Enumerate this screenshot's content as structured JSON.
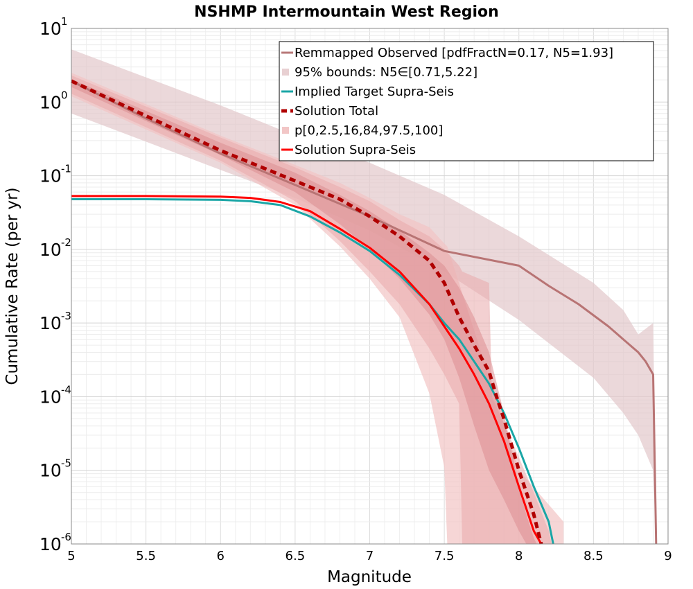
{
  "chart_data": {
    "type": "line",
    "title": "NSHMP Intermountain West Region",
    "xlabel": "Magnitude",
    "ylabel": "Cumulative Rate (per yr)",
    "xlim": [
      5,
      9
    ],
    "ylim": [
      1e-06,
      10
    ],
    "yscale": "log",
    "grid": true,
    "legend_position": "top-right",
    "xticks": [
      "5",
      "5.5",
      "6",
      "6.5",
      "7",
      "7.5",
      "8",
      "8.5",
      "9"
    ],
    "yticks": [
      {
        "base": "10",
        "exp": "1",
        "value": 10
      },
      {
        "base": "10",
        "exp": "0",
        "value": 1
      },
      {
        "base": "10",
        "exp": "-1",
        "value": 0.1
      },
      {
        "base": "10",
        "exp": "-2",
        "value": 0.01
      },
      {
        "base": "10",
        "exp": "-3",
        "value": 0.001
      },
      {
        "base": "10",
        "exp": "-4",
        "value": 0.0001
      },
      {
        "base": "10",
        "exp": "-5",
        "value": 1e-05
      },
      {
        "base": "10",
        "exp": "-6",
        "value": 1e-06
      }
    ],
    "legend": [
      {
        "label": "Remmapped Observed [pdfFractN=0.17, N5=1.93]",
        "style": "line",
        "color": "#b87878"
      },
      {
        "label": "95% bounds: N5∈[0.71,5.22]",
        "style": "band",
        "color": "#e8d0d2"
      },
      {
        "label": "Implied Target Supra-Seis",
        "style": "line",
        "color": "#1aa6a6"
      },
      {
        "label": "Solution Total",
        "style": "dashed",
        "color": "#b00000"
      },
      {
        "label": "p[0,2.5,16,84,97.5,100]",
        "style": "band",
        "color": "#f2c6c6"
      },
      {
        "label": "Solution Supra-Seis",
        "style": "line",
        "color": "#ff0000"
      }
    ],
    "bands": [
      {
        "name": "95% bounds: N5∈[0.71,5.22]",
        "color": "#e2c8cb",
        "opacity": 0.7,
        "x": [
          5.0,
          6.0,
          6.5,
          7.0,
          7.5,
          8.0,
          8.5,
          8.7,
          8.8,
          8.9,
          8.92
        ],
        "lower": [
          0.7,
          0.12,
          0.05,
          0.018,
          0.005,
          0.0011,
          0.00018,
          6e-05,
          3e-05,
          1e-05,
          1e-06
        ],
        "upper": [
          5.2,
          0.9,
          0.35,
          0.15,
          0.055,
          0.015,
          0.0035,
          0.0015,
          0.0007,
          0.001,
          1e-06
        ]
      },
      {
        "name": "p 0-100",
        "color": "#f2c4c4",
        "opacity": 0.7,
        "x": [
          5.0,
          6.0,
          6.5,
          6.8,
          7.0,
          7.2,
          7.4,
          7.5,
          7.52,
          8.0,
          8.3,
          8.3
        ],
        "lower": [
          1.2,
          0.15,
          0.04,
          0.011,
          0.004,
          0.0012,
          0.00011,
          1.1e-05,
          1e-06,
          1e-06,
          1e-06,
          1e-06
        ],
        "upper": [
          2.5,
          0.35,
          0.14,
          0.08,
          0.05,
          0.03,
          0.02,
          0.012,
          0.011,
          1e-05,
          2e-06,
          1e-06
        ]
      },
      {
        "name": "p 2.5-97.5",
        "color": "#e9a9ab",
        "opacity": 0.55,
        "x": [
          5.0,
          6.0,
          6.5,
          6.8,
          7.0,
          7.2,
          7.4,
          7.5,
          7.6,
          7.62,
          7.8,
          7.82,
          8.0,
          8.1,
          8.2,
          8.22
        ],
        "lower": [
          1.3,
          0.16,
          0.045,
          0.013,
          0.005,
          0.0018,
          0.00045,
          0.0002,
          8e-05,
          1e-06,
          1e-06,
          1e-06,
          1e-06,
          1e-06,
          1e-06,
          1e-06
        ],
        "upper": [
          2.3,
          0.33,
          0.13,
          0.07,
          0.045,
          0.025,
          0.015,
          0.01,
          0.006,
          0.005,
          0.0035,
          0.0001,
          1.5e-05,
          5e-06,
          1.5e-06,
          1e-06
        ]
      },
      {
        "name": "p 16-84",
        "color": "#dc8e91",
        "opacity": 0.55,
        "x": [
          5.0,
          6.0,
          6.5,
          6.8,
          7.0,
          7.2,
          7.4,
          7.5,
          7.6,
          7.7,
          7.8,
          7.9,
          8.0,
          8.05,
          8.1,
          8.12
        ],
        "lower": [
          1.6,
          0.19,
          0.06,
          0.022,
          0.01,
          0.004,
          0.0013,
          0.0006,
          0.00018,
          4e-05,
          1e-05,
          4e-06,
          1.5e-06,
          1e-06,
          1e-06,
          1e-06
        ],
        "upper": [
          2.05,
          0.28,
          0.11,
          0.055,
          0.033,
          0.018,
          0.009,
          0.006,
          0.003,
          0.0012,
          0.0004,
          6e-05,
          6e-06,
          2.5e-06,
          1.2e-06,
          1e-06
        ]
      }
    ],
    "series": [
      {
        "name": "Remmapped Observed [pdfFractN=0.17, N5=1.93]",
        "color": "#b87474",
        "style": "solid",
        "width": 3,
        "x": [
          5.0,
          5.5,
          6.0,
          6.5,
          7.0,
          7.5,
          8.0,
          8.2,
          8.4,
          8.6,
          8.7,
          8.8,
          8.85,
          8.9,
          8.92
        ],
        "y": [
          1.93,
          0.6,
          0.2,
          0.075,
          0.028,
          0.0095,
          0.006,
          0.0032,
          0.0018,
          0.0009,
          0.0006,
          0.0004,
          0.0003,
          0.0002,
          1e-06
        ]
      },
      {
        "name": "Implied Target Supra-Seis",
        "color": "#1aa6a6",
        "style": "solid",
        "width": 3,
        "x": [
          5.0,
          5.5,
          6.0,
          6.2,
          6.4,
          6.6,
          6.8,
          7.0,
          7.2,
          7.4,
          7.5,
          7.6,
          7.7,
          7.8,
          7.9,
          8.0,
          8.1,
          8.2,
          8.23
        ],
        "y": [
          0.048,
          0.048,
          0.047,
          0.045,
          0.04,
          0.028,
          0.017,
          0.0095,
          0.0045,
          0.0018,
          0.001,
          0.0006,
          0.0003,
          0.00015,
          6e-05,
          2e-05,
          6e-06,
          2e-06,
          1e-06
        ]
      },
      {
        "name": "Solution Supra-Seis",
        "color": "#ff0000",
        "style": "solid",
        "width": 3,
        "x": [
          5.0,
          5.5,
          6.0,
          6.2,
          6.4,
          6.6,
          6.8,
          7.0,
          7.2,
          7.4,
          7.5,
          7.6,
          7.7,
          7.8,
          7.9,
          8.0,
          8.1,
          8.15
        ],
        "y": [
          0.053,
          0.053,
          0.052,
          0.05,
          0.044,
          0.033,
          0.019,
          0.0105,
          0.005,
          0.0018,
          0.0009,
          0.00045,
          0.0002,
          8e-05,
          2.5e-05,
          6e-06,
          1.5e-06,
          1e-06
        ]
      },
      {
        "name": "Solution Total",
        "color": "#b00000",
        "style": "dashed",
        "width": 5,
        "x": [
          5.0,
          5.5,
          6.0,
          6.5,
          6.8,
          7.0,
          7.2,
          7.4,
          7.5,
          7.6,
          7.7,
          7.8,
          7.85,
          7.9,
          8.0,
          8.1,
          8.15
        ],
        "y": [
          1.93,
          0.65,
          0.22,
          0.085,
          0.048,
          0.028,
          0.015,
          0.007,
          0.0035,
          0.0012,
          0.0005,
          0.00022,
          0.0001,
          5e-05,
          1e-05,
          2.5e-06,
          1e-06
        ]
      }
    ]
  }
}
